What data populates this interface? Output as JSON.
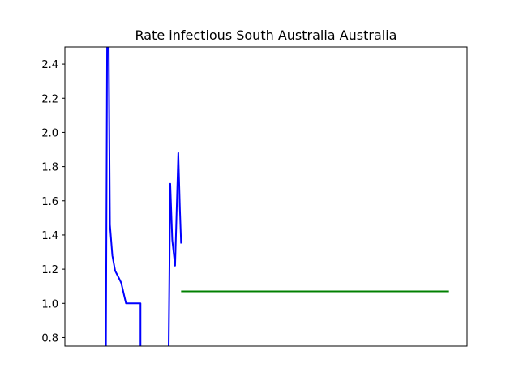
{
  "chart_data": {
    "type": "line",
    "title": "Rate infectious South Australia Australia",
    "xlabel": "",
    "ylabel": "",
    "ylim": [
      0.75,
      2.5
    ],
    "xlim": [
      0,
      100
    ],
    "yticks": [
      0.8,
      1.0,
      1.2,
      1.4,
      1.6,
      1.8,
      2.0,
      2.2,
      2.4
    ],
    "grid": false,
    "legend": "none",
    "series": [
      {
        "color": "#0000ff",
        "points": [
          [
            10.2,
            0.72
          ],
          [
            10.5,
            2.5
          ],
          [
            10.6,
            2.9
          ],
          [
            10.9,
            2.5
          ],
          [
            11.2,
            1.46
          ],
          [
            11.8,
            1.28
          ],
          [
            12.5,
            1.19
          ],
          [
            13.6,
            1.14
          ],
          [
            14.0,
            1.12
          ],
          [
            14.5,
            1.07
          ],
          [
            14.9,
            1.03
          ],
          [
            15.2,
            1.0
          ],
          [
            18.8,
            1.0
          ],
          [
            18.8,
            0.72
          ]
        ]
      },
      {
        "color": "#0000ff",
        "points": [
          [
            25.8,
            0.72
          ],
          [
            26.2,
            1.7
          ],
          [
            26.7,
            1.37
          ],
          [
            27.4,
            1.22
          ],
          [
            28.2,
            1.88
          ],
          [
            28.6,
            1.55
          ],
          [
            28.9,
            1.35
          ]
        ]
      },
      {
        "color": "#008000",
        "points": [
          [
            28.9,
            1.07
          ],
          [
            95.5,
            1.07
          ]
        ]
      }
    ]
  }
}
